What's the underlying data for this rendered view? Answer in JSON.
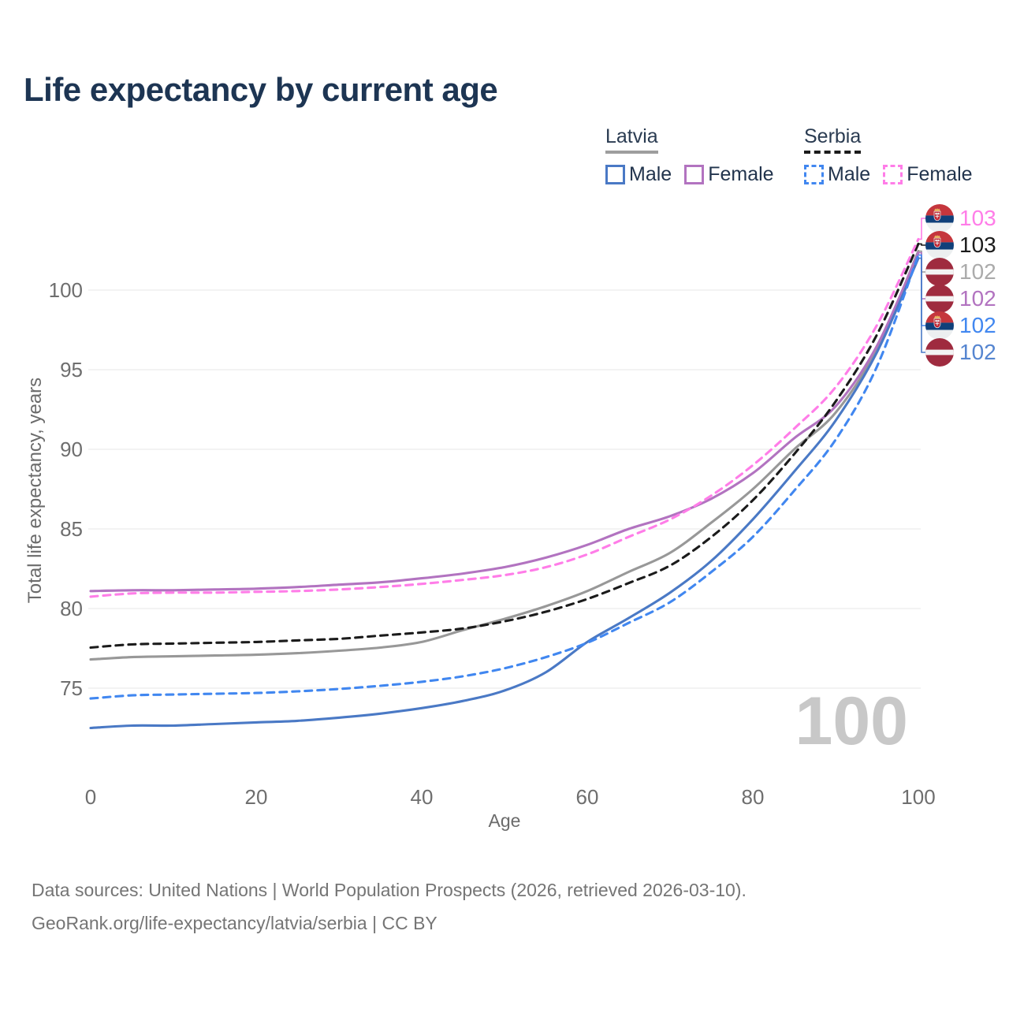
{
  "header": {
    "title": "Life expectancy by current age"
  },
  "legend": {
    "groups": [
      {
        "name": "Latvia",
        "line_style": "solid",
        "underline_color": "#9e9e9e",
        "items": [
          {
            "label": "Male",
            "color": "#4a79c5",
            "dashed": false
          },
          {
            "label": "Female",
            "color": "#b273c0",
            "dashed": false
          }
        ]
      },
      {
        "name": "Serbia",
        "line_style": "dashed",
        "underline_color": "#1b1b1b",
        "items": [
          {
            "label": "Male",
            "color": "#4187f0",
            "dashed": true
          },
          {
            "label": "Female",
            "color": "#ff7de8",
            "dashed": true
          }
        ]
      }
    ]
  },
  "chart_data": {
    "type": "line",
    "title": "Life expectancy by current age",
    "xlabel": "Age",
    "ylabel": "Total life expectancy, years",
    "x_ticks": [
      0,
      20,
      40,
      60,
      80,
      100
    ],
    "y_ticks": [
      75,
      80,
      85,
      90,
      95,
      100
    ],
    "xlim": [
      0,
      100
    ],
    "ylim": [
      72,
      104
    ],
    "grid": "horizontal",
    "legend_position": "top-right",
    "age_indicator": "100",
    "x": [
      0,
      5,
      10,
      15,
      20,
      25,
      30,
      35,
      40,
      45,
      50,
      55,
      60,
      65,
      70,
      75,
      80,
      85,
      90,
      95,
      100
    ],
    "series": [
      {
        "name": "Serbia Female",
        "country": "Serbia",
        "sex": "Female",
        "flag": "serbia",
        "color": "#ff7de8",
        "dashed": true,
        "end_label": "103",
        "label_color": "#ff7de8",
        "values": [
          80.75,
          80.95,
          81.0,
          81.0,
          81.05,
          81.1,
          81.2,
          81.35,
          81.55,
          81.8,
          82.1,
          82.6,
          83.4,
          84.5,
          85.6,
          87.1,
          89.0,
          91.3,
          93.9,
          97.8,
          103.2
        ]
      },
      {
        "name": "Serbia",
        "country": "Serbia",
        "sex": "Both",
        "flag": "serbia",
        "color": "#1b1b1b",
        "dashed": true,
        "end_label": "103",
        "label_color": "#1b1b1b",
        "values": [
          77.55,
          77.75,
          77.8,
          77.85,
          77.9,
          78.0,
          78.1,
          78.3,
          78.5,
          78.75,
          79.2,
          79.8,
          80.6,
          81.6,
          82.7,
          84.5,
          86.8,
          89.7,
          93.0,
          97.2,
          102.9
        ]
      },
      {
        "name": "Latvia",
        "country": "Latvia",
        "sex": "Both",
        "flag": "latvia",
        "color": "#989898",
        "dashed": false,
        "end_label": "102",
        "label_color": "#ababab",
        "values": [
          76.8,
          76.95,
          77.0,
          77.05,
          77.1,
          77.2,
          77.35,
          77.55,
          77.9,
          78.65,
          79.35,
          80.15,
          81.1,
          82.3,
          83.5,
          85.4,
          87.5,
          90.0,
          92.3,
          96.3,
          102.45
        ]
      },
      {
        "name": "Latvia Female",
        "country": "Latvia",
        "sex": "Female",
        "flag": "latvia",
        "color": "#b273c0",
        "dashed": false,
        "end_label": "102",
        "label_color": "#b273c0",
        "values": [
          81.1,
          81.15,
          81.15,
          81.2,
          81.25,
          81.35,
          81.5,
          81.65,
          81.9,
          82.2,
          82.6,
          83.2,
          84.0,
          85.0,
          85.8,
          86.9,
          88.5,
          90.7,
          92.7,
          96.5,
          102.35
        ]
      },
      {
        "name": "Serbia Male",
        "country": "Serbia",
        "sex": "Male",
        "flag": "serbia",
        "color": "#4187f0",
        "dashed": true,
        "end_label": "102",
        "label_color": "#4187f0",
        "values": [
          74.35,
          74.55,
          74.6,
          74.65,
          74.7,
          74.8,
          74.95,
          75.15,
          75.4,
          75.75,
          76.25,
          76.95,
          77.85,
          79.1,
          80.4,
          82.3,
          84.5,
          87.4,
          90.6,
          95.2,
          102.2
        ]
      },
      {
        "name": "Latvia Male",
        "country": "Latvia",
        "sex": "Male",
        "flag": "latvia",
        "color": "#4a79c5",
        "dashed": false,
        "end_label": "102",
        "label_color": "#5585d0",
        "values": [
          72.5,
          72.65,
          72.65,
          72.75,
          72.85,
          72.95,
          73.15,
          73.4,
          73.75,
          74.2,
          74.85,
          76.0,
          77.9,
          79.4,
          81.0,
          83.0,
          85.6,
          88.6,
          91.8,
          96.1,
          102.0
        ]
      }
    ]
  },
  "flags": {
    "latvia": {
      "red": "#9f2b3f",
      "white": "#f3f3f3"
    },
    "serbia": {
      "red": "#c5363d",
      "blue": "#10407a",
      "white": "#eceff0",
      "gold": "#e9b860",
      "shield": "#bf2633"
    }
  },
  "footer": {
    "line1": "Data sources: United Nations | World Population Prospects (2026, retrieved 2026-03-10).",
    "line2": "GeoRank.org/life-expectancy/latvia/serbia | CC BY"
  }
}
